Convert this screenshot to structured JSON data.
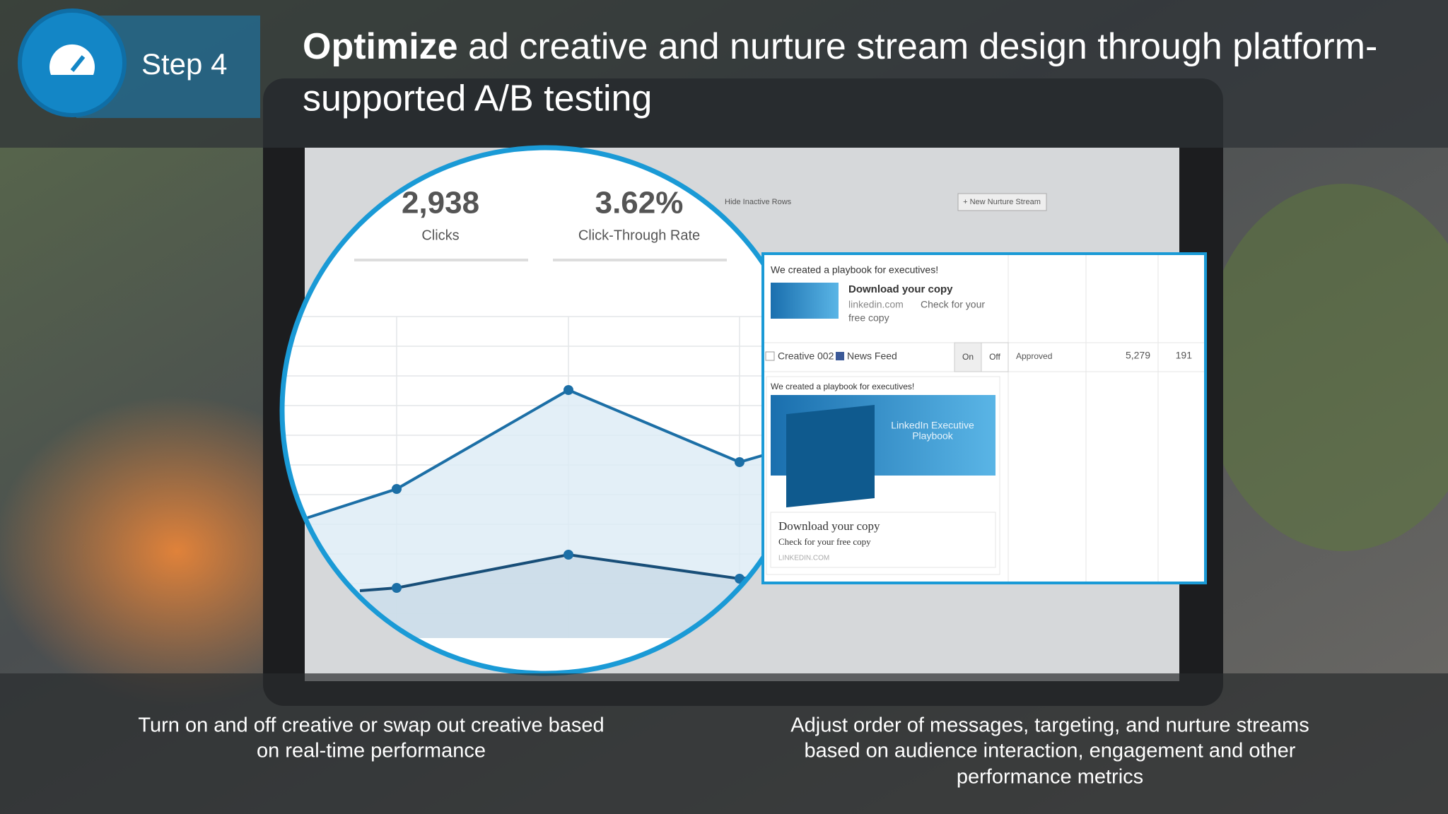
{
  "header": {
    "step": "Step 4",
    "title_bold": "Optimize",
    "title_rest_lines": [
      "ad creative and nurture stream design through platform-",
      "supported A/B testing"
    ]
  },
  "stats": [
    {
      "value": "2,938",
      "label": "Clicks"
    },
    {
      "value": "3.62%",
      "label": "Click-Through Rate"
    }
  ],
  "screen": {
    "hide_rows": "Hide Inactive Rows",
    "new_stream": "+ New Nurture Stream"
  },
  "ad_panel": {
    "card1": {
      "headline": "We created a playbook for executives!",
      "cta": "Download your copy",
      "domain": "linkedin.com",
      "desc_1": "Check for your",
      "desc_2": "free copy"
    },
    "row": {
      "creative": "Creative 002",
      "placement": "News Feed",
      "on": "On",
      "off": "Off",
      "status": "Approved",
      "impressions": "5,279",
      "clicks": "191"
    },
    "card2": {
      "headline": "We created a playbook for executives!",
      "image_title_lines": [
        "LinkedIn Executive",
        "Playbook"
      ],
      "cta": "Download your copy",
      "desc": "Check for your free copy",
      "domain": "LINKEDIN.COM"
    }
  },
  "captions": {
    "left_lines": [
      "Turn on and off creative or swap out creative based",
      "on real-time performance"
    ],
    "right_lines": [
      "Adjust order of messages, targeting, and nurture streams",
      "based on audience interaction, engagement and other",
      "performance metrics"
    ]
  }
}
